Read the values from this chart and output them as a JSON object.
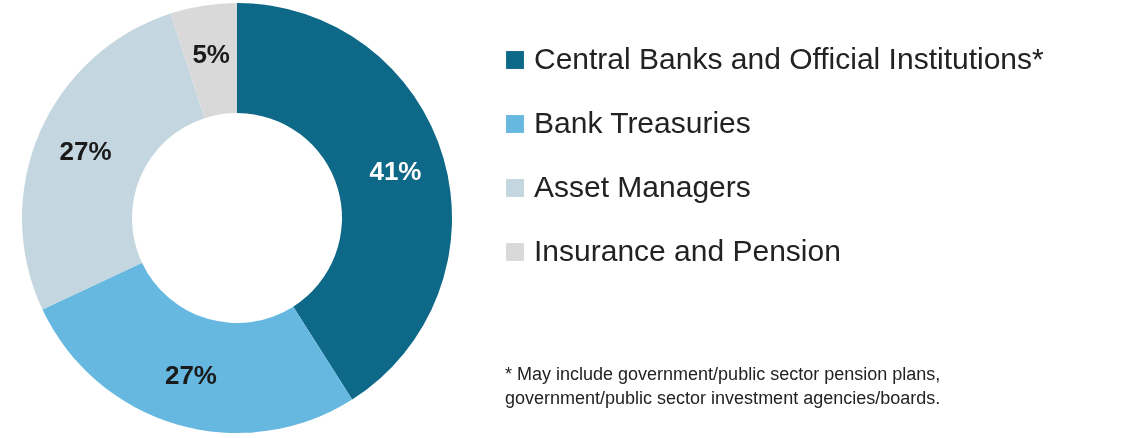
{
  "chart_data": {
    "type": "donut",
    "categories": [
      "Central Banks and Official Institutions*",
      "Bank Treasuries",
      "Asset Managers",
      "Insurance and Pension"
    ],
    "values": [
      41,
      27,
      27,
      5
    ],
    "colors": [
      "#0e6888",
      "#66b8e0",
      "#c4d6df",
      "#d9d9d9"
    ],
    "value_labels": [
      "41%",
      "27%",
      "27%",
      "5%"
    ],
    "legend": "right",
    "annotations": [
      "*  May include government/public sector pension plans,\n    government/public sector investment agencies/boards."
    ]
  }
}
